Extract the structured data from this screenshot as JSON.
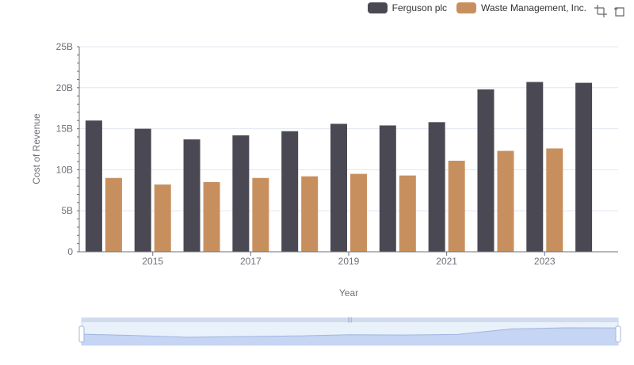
{
  "legend": {
    "items": [
      {
        "label": "Ferguson plc",
        "color": "#4a4953"
      },
      {
        "label": "Waste Management, Inc.",
        "color": "#c88f5e"
      }
    ]
  },
  "toolbox": {
    "icons": [
      "zoom-icon",
      "restore-icon"
    ]
  },
  "chart_data": {
    "type": "bar",
    "title": "",
    "xlabel": "Year",
    "ylabel": "Cost of Revenue",
    "ylim": [
      0,
      25000000000
    ],
    "yticks": [
      "0",
      "5B",
      "10B",
      "15B",
      "20B",
      "25B"
    ],
    "categories": [
      "2014",
      "2015",
      "2016",
      "2017",
      "2018",
      "2019",
      "2020",
      "2021",
      "2022",
      "2023",
      "2024"
    ],
    "xtick_labels": [
      "2015",
      "2017",
      "2019",
      "2021",
      "2023"
    ],
    "grid": true,
    "legend_position": "top-right",
    "series": [
      {
        "name": "Ferguson plc",
        "color": "#4a4953",
        "values": [
          16000000000,
          15000000000,
          13700000000,
          14200000000,
          14700000000,
          15600000000,
          15400000000,
          15800000000,
          19800000000,
          20700000000,
          20600000000
        ]
      },
      {
        "name": "Waste Management, Inc.",
        "color": "#c88f5e",
        "values": [
          9000000000,
          8200000000,
          8500000000,
          9000000000,
          9200000000,
          9500000000,
          9300000000,
          11100000000,
          12300000000,
          12600000000,
          null
        ]
      }
    ]
  },
  "datazoom": {
    "start": 0,
    "end": 100
  }
}
